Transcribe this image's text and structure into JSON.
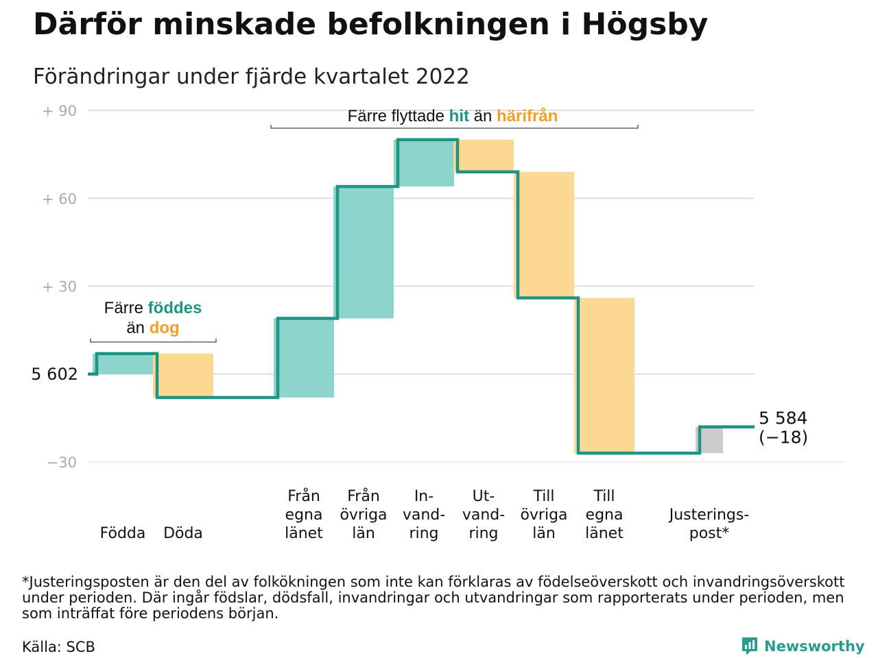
{
  "chart_data": {
    "type": "waterfall",
    "title": "Därför minskade befolkningen i Högsby",
    "subtitle": "Förändringar under fjärde kvartalet 2022",
    "start_value": 5602,
    "start_label": "5 602",
    "end_value": 5584,
    "end_label": "5 584",
    "end_change_label": "(−18)",
    "y_ticks": [
      {
        "value": 90,
        "label": "+ 90"
      },
      {
        "value": 60,
        "label": "+ 60"
      },
      {
        "value": 30,
        "label": "+ 30"
      },
      {
        "value": 0,
        "label": ""
      },
      {
        "value": -30,
        "label": "−30"
      }
    ],
    "ylim": [
      -30,
      90
    ],
    "categories": [
      {
        "label": [
          "Födda"
        ],
        "change": 7,
        "kind": "in"
      },
      {
        "label": [
          "Döda"
        ],
        "change": -15,
        "kind": "out"
      },
      {
        "label": [
          "Från",
          "egna",
          "länet"
        ],
        "change": 27,
        "kind": "in"
      },
      {
        "label": [
          "Från",
          "övriga",
          "län"
        ],
        "change": 45,
        "kind": "in"
      },
      {
        "label": [
          "In-",
          "vand-",
          "ring"
        ],
        "change": 16,
        "kind": "in"
      },
      {
        "label": [
          "Ut-",
          "vand-",
          "ring"
        ],
        "change": -11,
        "kind": "out"
      },
      {
        "label": [
          "Till",
          "övriga",
          "län"
        ],
        "change": -43,
        "kind": "out"
      },
      {
        "label": [
          "Till",
          "egna",
          "länet"
        ],
        "change": -53,
        "kind": "out"
      },
      {
        "label": [
          "Justerings-",
          "post*"
        ],
        "change": 9,
        "kind": "adjust"
      }
    ],
    "annotations": {
      "births": {
        "pre": "Färre ",
        "hl1": "föddes",
        "mid": "än ",
        "hl2": "dog"
      },
      "migration": {
        "pre": "Färre flyttade ",
        "hl1": "hit",
        "mid": " än ",
        "hl2": "härifrån"
      }
    },
    "colors": {
      "line": "#1f9484",
      "in": "#8dd5cc",
      "out": "#fcd893",
      "adjust": "#cccccc",
      "hit_text": "#1f9484",
      "out_text": "#f0a028",
      "grid": "#dddddd",
      "tick": "#aaaaaa"
    }
  },
  "footnote": "*Justeringsposten är den del av folkökningen som inte kan förklaras av födelseöverskott och invandringsöverskott under perioden. Där ingår födslar, dödsfall, invandringar och utvandringar som rapporterats under perioden, men som inträffat före periodens början.",
  "source": "Källa: SCB",
  "brand": {
    "name": "Newsworthy",
    "icon": "newsworthy-logo-icon"
  }
}
